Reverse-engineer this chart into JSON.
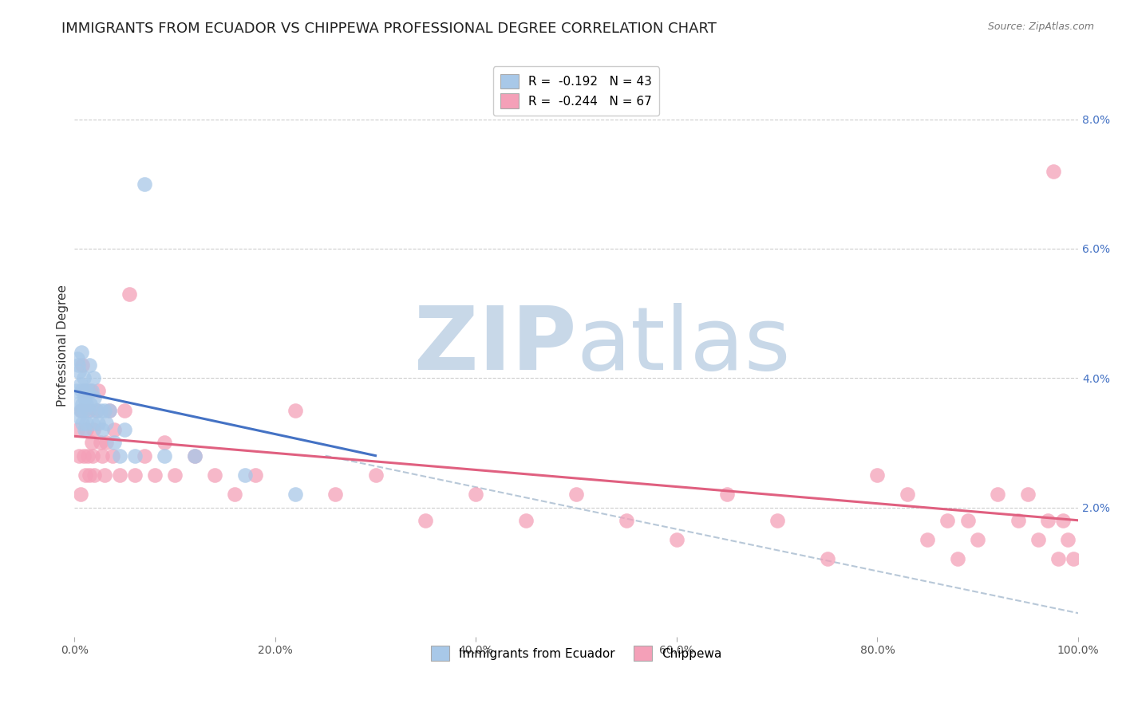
{
  "title": "IMMIGRANTS FROM ECUADOR VS CHIPPEWA PROFESSIONAL DEGREE CORRELATION CHART",
  "source": "Source: ZipAtlas.com",
  "ylabel": "Professional Degree",
  "right_ytick_labels": [
    "2.0%",
    "4.0%",
    "6.0%",
    "8.0%"
  ],
  "right_ytick_values": [
    0.02,
    0.04,
    0.06,
    0.08
  ],
  "xlim": [
    0.0,
    1.0
  ],
  "ylim": [
    0.0,
    0.09
  ],
  "xtick_labels": [
    "0.0%",
    "20.0%",
    "40.0%",
    "60.0%",
    "80.0%",
    "100.0%"
  ],
  "xtick_values": [
    0.0,
    0.2,
    0.4,
    0.6,
    0.8,
    1.0
  ],
  "legend_entries": [
    {
      "label": "R =  -0.192   N = 43",
      "color": "#a8c8e8"
    },
    {
      "label": "R =  -0.244   N = 67",
      "color": "#f4a0b8"
    }
  ],
  "legend_labels_bottom": [
    "Immigrants from Ecuador",
    "Chippewa"
  ],
  "blue_scatter_x": [
    0.002,
    0.003,
    0.003,
    0.004,
    0.005,
    0.005,
    0.006,
    0.006,
    0.007,
    0.007,
    0.008,
    0.008,
    0.009,
    0.009,
    0.01,
    0.01,
    0.011,
    0.012,
    0.012,
    0.013,
    0.014,
    0.015,
    0.016,
    0.017,
    0.018,
    0.019,
    0.02,
    0.022,
    0.024,
    0.026,
    0.028,
    0.03,
    0.032,
    0.035,
    0.04,
    0.045,
    0.05,
    0.06,
    0.07,
    0.09,
    0.12,
    0.17,
    0.22
  ],
  "blue_scatter_y": [
    0.038,
    0.043,
    0.036,
    0.042,
    0.041,
    0.034,
    0.039,
    0.035,
    0.044,
    0.038,
    0.036,
    0.033,
    0.04,
    0.035,
    0.037,
    0.032,
    0.038,
    0.036,
    0.033,
    0.038,
    0.035,
    0.042,
    0.036,
    0.038,
    0.033,
    0.04,
    0.037,
    0.035,
    0.033,
    0.035,
    0.032,
    0.035,
    0.033,
    0.035,
    0.03,
    0.028,
    0.032,
    0.028,
    0.07,
    0.028,
    0.028,
    0.025,
    0.022
  ],
  "pink_scatter_x": [
    0.003,
    0.005,
    0.006,
    0.007,
    0.008,
    0.009,
    0.01,
    0.011,
    0.012,
    0.013,
    0.014,
    0.015,
    0.016,
    0.017,
    0.018,
    0.019,
    0.02,
    0.022,
    0.024,
    0.026,
    0.028,
    0.03,
    0.032,
    0.035,
    0.038,
    0.04,
    0.045,
    0.05,
    0.055,
    0.06,
    0.07,
    0.08,
    0.09,
    0.1,
    0.12,
    0.14,
    0.16,
    0.18,
    0.22,
    0.26,
    0.3,
    0.35,
    0.4,
    0.45,
    0.5,
    0.55,
    0.6,
    0.65,
    0.7,
    0.75,
    0.8,
    0.83,
    0.85,
    0.87,
    0.88,
    0.89,
    0.9,
    0.92,
    0.94,
    0.95,
    0.96,
    0.97,
    0.975,
    0.98,
    0.985,
    0.99,
    0.995
  ],
  "pink_scatter_y": [
    0.032,
    0.028,
    0.022,
    0.035,
    0.042,
    0.028,
    0.038,
    0.025,
    0.032,
    0.028,
    0.035,
    0.025,
    0.038,
    0.03,
    0.028,
    0.032,
    0.025,
    0.035,
    0.038,
    0.03,
    0.028,
    0.025,
    0.03,
    0.035,
    0.028,
    0.032,
    0.025,
    0.035,
    0.053,
    0.025,
    0.028,
    0.025,
    0.03,
    0.025,
    0.028,
    0.025,
    0.022,
    0.025,
    0.035,
    0.022,
    0.025,
    0.018,
    0.022,
    0.018,
    0.022,
    0.018,
    0.015,
    0.022,
    0.018,
    0.012,
    0.025,
    0.022,
    0.015,
    0.018,
    0.012,
    0.018,
    0.015,
    0.022,
    0.018,
    0.022,
    0.015,
    0.018,
    0.072,
    0.012,
    0.018,
    0.015,
    0.012
  ],
  "blue_line_x": [
    0.0,
    0.3
  ],
  "blue_line_y_start": 0.038,
  "blue_line_y_end": 0.028,
  "pink_line_x": [
    0.0,
    1.0
  ],
  "pink_line_y_start": 0.031,
  "pink_line_y_end": 0.018,
  "dashed_line_x": [
    0.25,
    1.02
  ],
  "dashed_line_y_start": 0.028,
  "dashed_line_y_end": 0.003,
  "scatter_color_blue": "#a8c8e8",
  "scatter_color_pink": "#f4a0b8",
  "line_color_blue": "#4472c4",
  "line_color_pink": "#e06080",
  "dashed_line_color": "#b8c8d8",
  "watermark_zip": "ZIP",
  "watermark_atlas": "atlas",
  "watermark_color": "#c8d8e8",
  "background_color": "#ffffff",
  "grid_color": "#cccccc",
  "title_fontsize": 13,
  "axis_label_fontsize": 11,
  "tick_fontsize": 10,
  "legend_fontsize": 11
}
